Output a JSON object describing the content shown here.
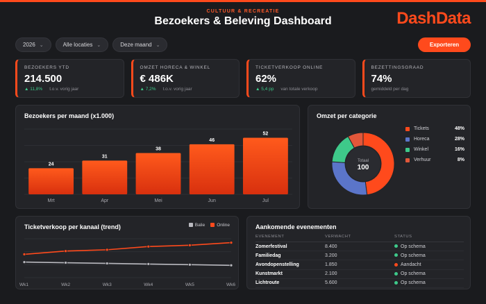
{
  "header": {
    "kicker": "CULTUUR & RECREATIE",
    "title": "Bezoekers & Beleving Dashboard",
    "logo": "DashData"
  },
  "filters": {
    "year": "2026",
    "location": "Alle locaties",
    "period": "Deze maand"
  },
  "export_label": "Exporteren",
  "colors": {
    "accent": "#ff4a1c",
    "positive": "#3ec98a",
    "grey_series": "#b9b9bf"
  },
  "kpis": [
    {
      "label": "BEZOEKERS YTD",
      "value": "214.500",
      "delta": "▲ 11,8%",
      "note": "t.o.v. vorig jaar"
    },
    {
      "label": "OMZET HORECA & WINKEL",
      "value": "€ 486K",
      "delta": "▲ 7,2%",
      "note": "t.o.v. vorig jaar"
    },
    {
      "label": "TICKETVERKOOP ONLINE",
      "value": "62%",
      "delta": "▲ 5,4 pp",
      "note": "van totale verkoop"
    },
    {
      "label": "BEZETTINGSGRAAD",
      "value": "74%",
      "delta": "",
      "note": "gemiddeld per dag"
    }
  ],
  "bar_panel": {
    "title": "Bezoekers per maand (x1.000)"
  },
  "donut_panel": {
    "title": "Omzet per categorie",
    "center_label": "Totaal",
    "center_value": "100",
    "legend": [
      {
        "name": "Tickets",
        "value": "48%",
        "color": "#ff4a1c"
      },
      {
        "name": "Horeca",
        "value": "28%",
        "color": "#5b75c9"
      },
      {
        "name": "Winkel",
        "value": "16%",
        "color": "#3ec98a"
      },
      {
        "name": "Verhuur",
        "value": "8%",
        "color": "#e2573a"
      }
    ]
  },
  "line_panel": {
    "title": "Ticketverkoop per kanaal (trend)"
  },
  "events_panel": {
    "title": "Aankomende evenementen",
    "columns": [
      "EVENEMENT",
      "VERWACHT",
      "STATUS"
    ],
    "rows": [
      {
        "name": "Zomerfestival",
        "expected": "8.400",
        "status": "Op schema",
        "color": "#3ec98a"
      },
      {
        "name": "Familiedag",
        "expected": "3.200",
        "status": "Op schema",
        "color": "#3ec98a"
      },
      {
        "name": "Avondopenstelling",
        "expected": "1.850",
        "status": "Aandacht",
        "color": "#ff4a1c"
      },
      {
        "name": "Kunstmarkt",
        "expected": "2.100",
        "status": "Op schema",
        "color": "#3ec98a"
      },
      {
        "name": "Lichtroute",
        "expected": "5.600",
        "status": "Op schema",
        "color": "#3ec98a"
      }
    ]
  },
  "chart_data": [
    {
      "type": "bar",
      "title": "Bezoekers per maand (x1.000)",
      "categories": [
        "Mrt",
        "Apr",
        "Mei",
        "Jun",
        "Jul"
      ],
      "values": [
        24,
        31,
        38,
        46,
        52
      ],
      "ylim": [
        0,
        60
      ],
      "grid": true
    },
    {
      "type": "pie",
      "title": "Omzet per categorie",
      "categories": [
        "Tickets",
        "Horeca",
        "Winkel",
        "Verhuur"
      ],
      "values": [
        48,
        28,
        16,
        8
      ],
      "legend": "right"
    },
    {
      "type": "line",
      "title": "Ticketverkoop per kanaal (trend)",
      "x": [
        "Wk1",
        "Wk2",
        "Wk3",
        "Wk4",
        "Wk5",
        "Wk6"
      ],
      "series": [
        {
          "name": "Balie",
          "values": [
            44,
            43,
            42,
            41,
            40,
            39
          ],
          "color": "#b9b9bf"
        },
        {
          "name": "Online",
          "values": [
            56,
            61,
            63,
            68,
            70,
            74
          ],
          "color": "#ff4a1c"
        }
      ],
      "ylim": [
        20,
        80
      ],
      "legend": "top-right"
    }
  ]
}
